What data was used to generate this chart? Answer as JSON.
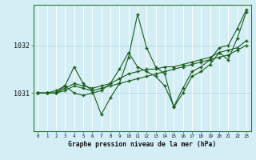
{
  "background_color": "#d4eef5",
  "grid_color": "#b8dde8",
  "line_color": "#1a5c1a",
  "title": "Graphe pression niveau de la mer (hPa)",
  "xlabel_hours": [
    0,
    1,
    2,
    3,
    4,
    5,
    6,
    7,
    8,
    9,
    10,
    11,
    12,
    13,
    14,
    15,
    16,
    17,
    18,
    19,
    20,
    21,
    22,
    23
  ],
  "yticks": [
    1031,
    1032
  ],
  "ylim": [
    1030.2,
    1032.85
  ],
  "series": [
    [
      1031.0,
      1031.0,
      1031.0,
      1031.05,
      1031.15,
      1031.1,
      1031.05,
      1031.1,
      1031.15,
      1031.2,
      1031.25,
      1031.3,
      1031.35,
      1031.4,
      1031.45,
      1031.5,
      1031.55,
      1031.6,
      1031.65,
      1031.7,
      1031.75,
      1031.8,
      1031.9,
      1032.0
    ],
    [
      1031.0,
      1031.0,
      1031.0,
      1031.1,
      1031.2,
      1031.15,
      1031.1,
      1031.15,
      1031.2,
      1031.3,
      1031.4,
      1031.45,
      1031.5,
      1031.5,
      1031.55,
      1031.55,
      1031.6,
      1031.65,
      1031.7,
      1031.75,
      1031.85,
      1031.9,
      1031.95,
      1032.1
    ],
    [
      1031.0,
      1031.0,
      1031.05,
      1031.15,
      1031.55,
      1031.2,
      1031.05,
      1030.55,
      1030.9,
      1031.2,
      1031.75,
      1032.65,
      1031.95,
      1031.55,
      1031.4,
      1030.7,
      1031.0,
      1031.35,
      1031.45,
      1031.6,
      1031.85,
      1031.7,
      1032.15,
      1032.7
    ],
    [
      1031.0,
      1031.0,
      1031.0,
      1031.15,
      1031.0,
      1030.95,
      1031.0,
      1031.05,
      1031.2,
      1031.5,
      1031.85,
      1031.55,
      1031.45,
      1031.35,
      1031.15,
      1030.72,
      1031.1,
      1031.45,
      1031.55,
      1031.7,
      1031.95,
      1032.0,
      1032.35,
      1032.75
    ]
  ]
}
